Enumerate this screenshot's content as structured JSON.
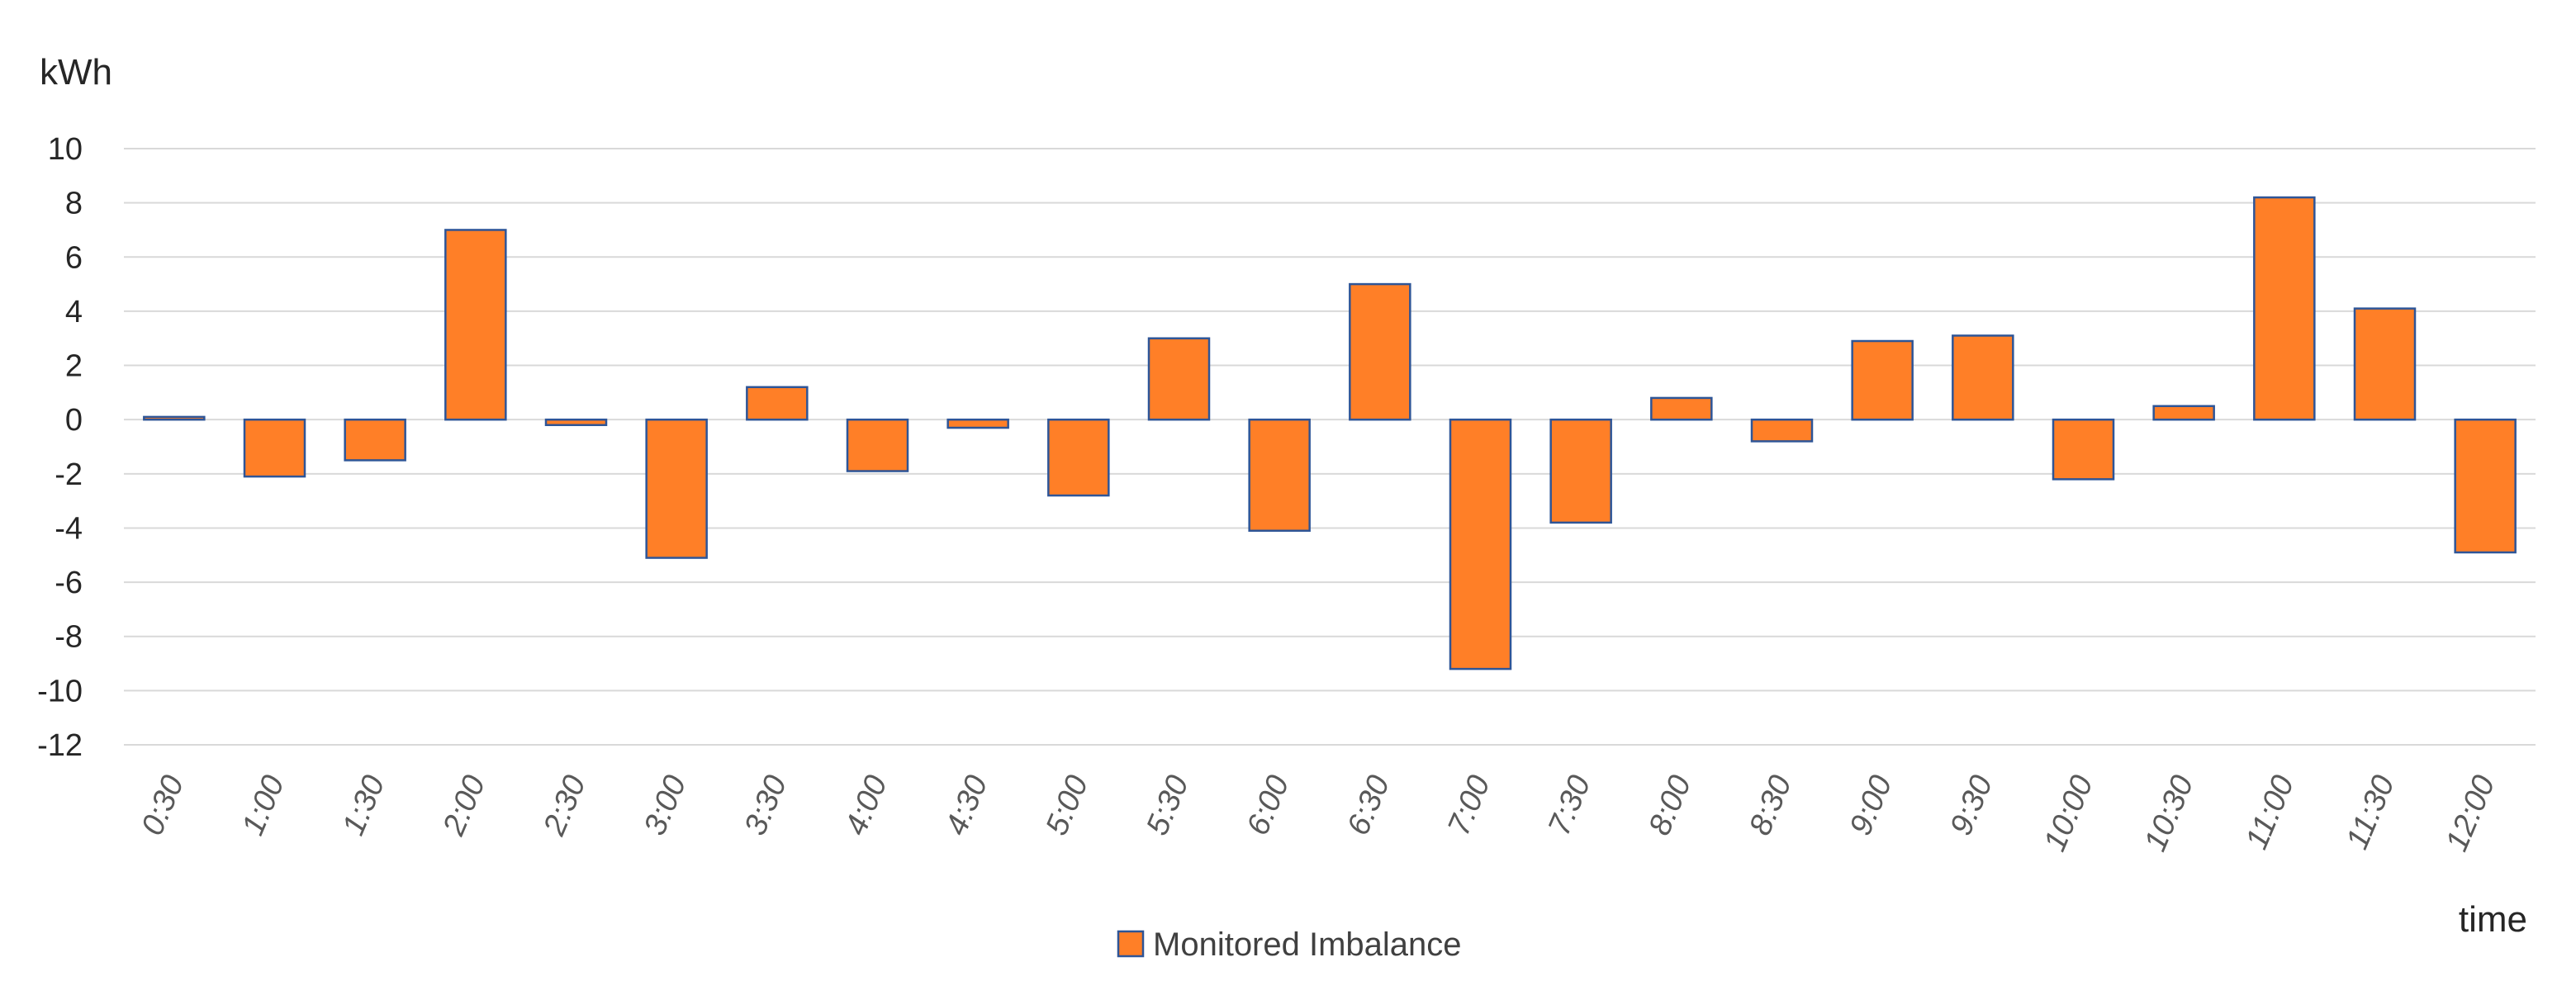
{
  "chart_data": {
    "type": "bar",
    "title": "",
    "ylabel": "kWh",
    "xlabel": "time",
    "ylim": [
      -12,
      10
    ],
    "yticks": [
      10,
      8,
      6,
      4,
      2,
      0,
      -2,
      -4,
      -6,
      -8,
      -10,
      -12
    ],
    "grid": true,
    "legend": "bottom",
    "categories": [
      "0:30",
      "1:00",
      "1:30",
      "2:00",
      "2:30",
      "3:00",
      "3:30",
      "4:00",
      "4:30",
      "5:00",
      "5:30",
      "6:00",
      "6:30",
      "7:00",
      "7:30",
      "8:00",
      "8:30",
      "9:00",
      "9:30",
      "10:00",
      "10:30",
      "11:00",
      "11:30",
      "12:00"
    ],
    "series": [
      {
        "name": "Monitored Imbalance",
        "color": "#FF7F27",
        "edge_color": "#2E5597",
        "values": [
          0.1,
          -2.1,
          -1.5,
          7.0,
          -0.2,
          -5.1,
          1.2,
          -1.9,
          -0.3,
          -2.8,
          3.0,
          -4.1,
          5.0,
          -9.2,
          -3.8,
          0.8,
          -0.8,
          2.9,
          3.1,
          -2.2,
          0.5,
          8.2,
          4.1,
          -4.9
        ]
      }
    ]
  }
}
